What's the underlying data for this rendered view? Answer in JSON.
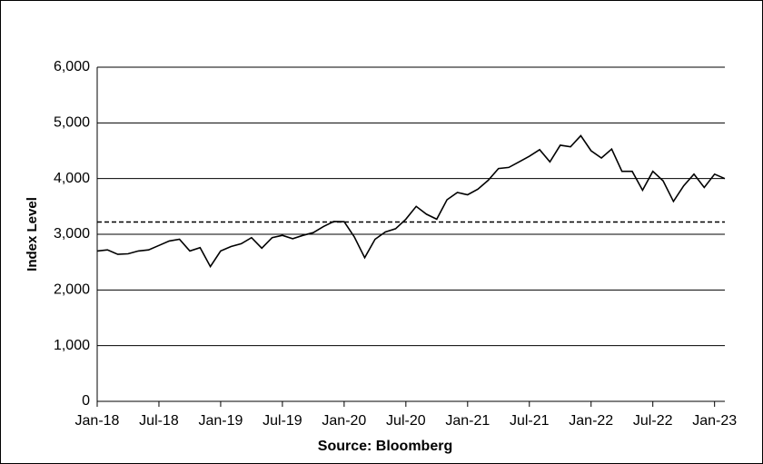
{
  "chart_data": {
    "type": "line",
    "ylabel": "Index Level",
    "xlabel": "Source: Bloomberg",
    "x": [
      "2018-01",
      "2018-02",
      "2018-03",
      "2018-04",
      "2018-05",
      "2018-06",
      "2018-07",
      "2018-08",
      "2018-09",
      "2018-10",
      "2018-11",
      "2018-12",
      "2019-01",
      "2019-02",
      "2019-03",
      "2019-04",
      "2019-05",
      "2019-06",
      "2019-07",
      "2019-08",
      "2019-09",
      "2019-10",
      "2019-11",
      "2019-12",
      "2020-01",
      "2020-02",
      "2020-03",
      "2020-04",
      "2020-05",
      "2020-06",
      "2020-07",
      "2020-08",
      "2020-09",
      "2020-10",
      "2020-11",
      "2020-12",
      "2021-01",
      "2021-02",
      "2021-03",
      "2021-04",
      "2021-05",
      "2021-06",
      "2021-07",
      "2021-08",
      "2021-09",
      "2021-10",
      "2021-11",
      "2021-12",
      "2022-01",
      "2022-02",
      "2022-03",
      "2022-04",
      "2022-05",
      "2022-06",
      "2022-07",
      "2022-08",
      "2022-09",
      "2022-10",
      "2022-11",
      "2022-12",
      "2023-01",
      "2023-02"
    ],
    "series": [
      {
        "color": "#000000",
        "values": [
          2700,
          2720,
          2640,
          2650,
          2700,
          2720,
          2800,
          2880,
          2910,
          2700,
          2760,
          2420,
          2700,
          2780,
          2830,
          2940,
          2750,
          2940,
          2980,
          2920,
          2980,
          3030,
          3140,
          3230,
          3225,
          2950,
          2580,
          2910,
          3040,
          3100,
          3270,
          3500,
          3360,
          3270,
          3620,
          3750,
          3710,
          3810,
          3970,
          4180,
          4200,
          4300,
          4400,
          4520,
          4300,
          4600,
          4570,
          4770,
          4500,
          4370,
          4530,
          4130,
          4130,
          3790,
          4130,
          3960,
          3590,
          3870,
          4080,
          3840,
          4080,
          4000
        ]
      }
    ],
    "reference_line": 3220,
    "xlim": [
      "2018-01",
      "2023-02"
    ],
    "xticks": [
      {
        "value": "2018-01",
        "label": "Jan-18"
      },
      {
        "value": "2018-07",
        "label": "Jul-18"
      },
      {
        "value": "2019-01",
        "label": "Jan-19"
      },
      {
        "value": "2019-07",
        "label": "Jul-19"
      },
      {
        "value": "2020-01",
        "label": "Jan-20"
      },
      {
        "value": "2020-07",
        "label": "Jul-20"
      },
      {
        "value": "2021-01",
        "label": "Jan-21"
      },
      {
        "value": "2021-07",
        "label": "Jul-21"
      },
      {
        "value": "2022-01",
        "label": "Jan-22"
      },
      {
        "value": "2022-07",
        "label": "Jul-22"
      },
      {
        "value": "2023-01",
        "label": "Jan-23"
      }
    ],
    "ylim": [
      0,
      6000
    ],
    "yticks": [
      0,
      {
        "value": 1000,
        "label": "1,000"
      },
      {
        "value": 2000,
        "label": "2,000"
      },
      {
        "value": 3000,
        "label": "3,000"
      },
      {
        "value": 4000,
        "label": "4,000"
      },
      {
        "value": 5000,
        "label": "5,000"
      },
      {
        "value": 6000,
        "label": "6,000"
      }
    ],
    "grid": true
  }
}
